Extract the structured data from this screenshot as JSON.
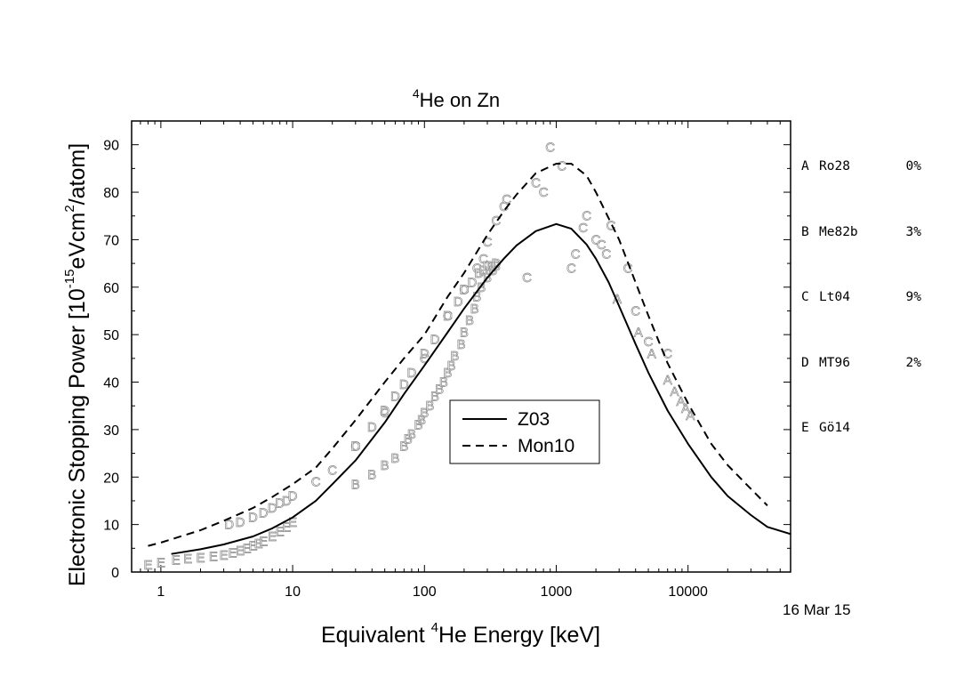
{
  "chart_data": {
    "type": "line",
    "title_parts": {
      "sup": "4",
      "text": "He on Zn"
    },
    "xlabel_parts": {
      "pre": "Equivalent ",
      "sup": "4",
      "post": "He Energy [keV]"
    },
    "ylabel_parts": {
      "pre": "Electronic Stopping Power [10",
      "sup1": "-15",
      "mid": "eVcm",
      "sup2": "2",
      "post": "/atom]"
    },
    "xscale": "log",
    "xlim": [
      0.6,
      60000
    ],
    "ylim": [
      0,
      95
    ],
    "x_ticks": [
      1,
      10,
      100,
      1000,
      10000
    ],
    "x_tick_labels": [
      "1",
      "10",
      "100",
      "1000",
      "10000"
    ],
    "y_ticks": [
      0,
      10,
      20,
      30,
      40,
      50,
      60,
      70,
      80,
      90
    ],
    "y_tick_labels": [
      "0",
      "10",
      "20",
      "30",
      "40",
      "50",
      "60",
      "70",
      "80",
      "90"
    ],
    "legend_position": "center",
    "series": [
      {
        "name": "Z03",
        "style": "solid",
        "x": [
          1.2,
          2,
          3,
          5,
          7,
          10,
          15,
          20,
          30,
          50,
          70,
          100,
          150,
          200,
          300,
          400,
          500,
          700,
          1000,
          1300,
          1700,
          2000,
          2500,
          3000,
          4000,
          5000,
          7000,
          10000,
          15000,
          20000,
          30000,
          40000,
          60000
        ],
        "y": [
          3.8,
          4.8,
          5.8,
          7.5,
          9.2,
          11.5,
          15.0,
          18.5,
          23.5,
          31.5,
          37.5,
          43.5,
          50.5,
          55.5,
          62.0,
          66.0,
          68.8,
          71.8,
          73.3,
          72.3,
          69.0,
          66.0,
          61.0,
          56.0,
          48.0,
          42.0,
          34.0,
          27.0,
          20.0,
          16.0,
          12.0,
          9.5,
          8.0
        ]
      },
      {
        "name": "Mon10",
        "style": "dashed",
        "x": [
          0.8,
          1,
          2,
          3,
          5,
          7,
          10,
          15,
          20,
          30,
          50,
          70,
          100,
          150,
          200,
          300,
          400,
          500,
          700,
          1000,
          1300,
          1700,
          2000,
          3000,
          4000,
          5000,
          7000,
          10000,
          15000,
          20000,
          30000,
          40000
        ],
        "y": [
          5.5,
          6.2,
          8.8,
          10.8,
          13.5,
          15.8,
          18.5,
          22.0,
          26.0,
          32.0,
          40.0,
          45.0,
          50.0,
          58.0,
          63.0,
          71.0,
          76.0,
          79.5,
          84.0,
          86.0,
          86.0,
          83.5,
          80.0,
          70.0,
          61.0,
          54.0,
          44.0,
          35.5,
          27.0,
          22.5,
          17.5,
          14.0
        ]
      }
    ],
    "markers": [
      {
        "label": "A",
        "x": [
          2900,
          4200,
          5300,
          7000,
          7900,
          8800,
          9600,
          10400
        ],
        "y": [
          57.5,
          50.5,
          46.0,
          40.5,
          38.0,
          36.0,
          34.5,
          33.0
        ]
      },
      {
        "label": "B",
        "x": [
          30,
          40,
          50,
          60,
          70,
          75,
          80,
          90,
          95,
          100,
          110,
          120,
          130,
          140,
          150,
          160,
          170,
          190,
          200,
          220,
          240,
          250,
          270,
          300,
          330,
          350
        ],
        "y": [
          18.5,
          20.5,
          22.5,
          24.0,
          26.5,
          28.0,
          29.0,
          31.0,
          32.0,
          33.5,
          35.0,
          37.0,
          38.5,
          40.0,
          42.0,
          43.5,
          45.5,
          48.0,
          50.5,
          53.0,
          55.5,
          58.0,
          60.0,
          62.0,
          63.5,
          64.5
        ]
      },
      {
        "label": "C",
        "x": [
          15,
          20,
          30,
          50,
          100,
          150,
          200,
          250,
          280,
          300,
          350,
          400,
          420,
          600,
          700,
          800,
          900,
          1100,
          1300,
          1400,
          1600,
          1700,
          2000,
          2200,
          2400,
          2600,
          3500,
          4000,
          5000,
          7000
        ],
        "y": [
          19.0,
          21.5,
          26.5,
          33.5,
          45.0,
          54.0,
          59.5,
          64.0,
          66.0,
          69.5,
          74.0,
          77.0,
          78.5,
          62.0,
          82.0,
          80.0,
          89.5,
          85.5,
          64.0,
          67.0,
          72.5,
          75.0,
          70.0,
          69.0,
          67.0,
          73.0,
          64.0,
          55.0,
          48.5,
          46.0
        ]
      },
      {
        "label": "D",
        "x": [
          3.3,
          4,
          5,
          6,
          7,
          8,
          9,
          10,
          30,
          40,
          50,
          60,
          70,
          80,
          100,
          120,
          150,
          180,
          200,
          230,
          260,
          280,
          300,
          320,
          350
        ],
        "y": [
          10.0,
          10.5,
          11.5,
          12.5,
          13.5,
          14.5,
          15.0,
          16.0,
          26.5,
          30.5,
          34.0,
          37.0,
          39.5,
          42.0,
          46.0,
          49.0,
          54.0,
          57.0,
          59.5,
          61.0,
          63.0,
          63.5,
          64.5,
          64.5,
          65.0
        ]
      },
      {
        "label": "E",
        "x": [
          0.8,
          1,
          1.3,
          1.6,
          2,
          2.5,
          3,
          3.5,
          4,
          4.5,
          5,
          5.5,
          6,
          7,
          8,
          9,
          10
        ],
        "y": [
          1.5,
          2.0,
          2.5,
          2.8,
          3.0,
          3.3,
          3.6,
          4.0,
          4.5,
          5.0,
          5.5,
          6.0,
          6.5,
          7.5,
          8.5,
          9.5,
          10.5
        ]
      }
    ],
    "reference_list": [
      {
        "code": "A",
        "name": "Ro28",
        "pct": "0%"
      },
      {
        "code": "B",
        "name": "Me82b",
        "pct": "3%"
      },
      {
        "code": "C",
        "name": "Lt04",
        "pct": "9%"
      },
      {
        "code": "D",
        "name": "MT96",
        "pct": "2%"
      },
      {
        "code": "E",
        "name": "Gö14",
        "pct": ""
      }
    ],
    "date_stamp": "16 Mar 15"
  }
}
